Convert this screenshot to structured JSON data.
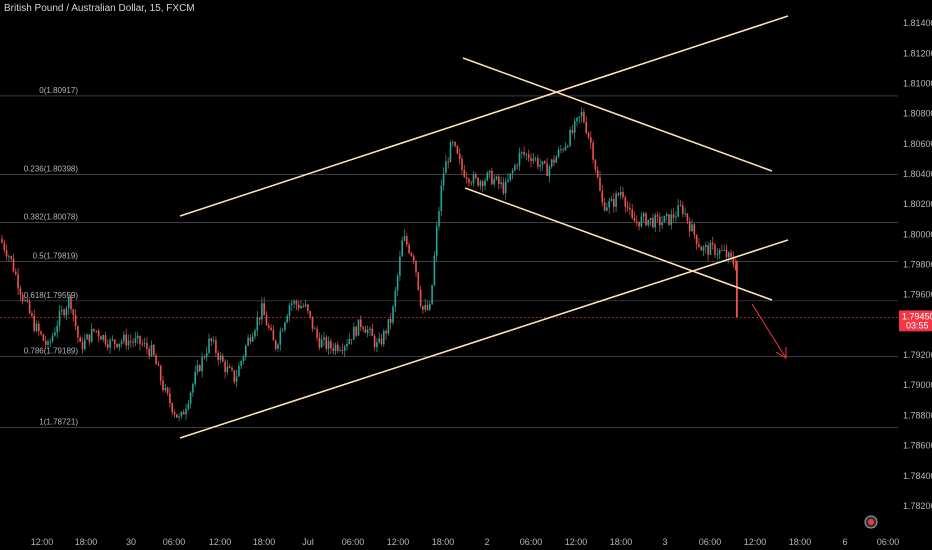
{
  "chart_data": {
    "type": "candlestick",
    "title": "British Pound / Australian Dollar, 15, FXCM",
    "price_axis": {
      "ticks": [
        "1.81400",
        "1.81200",
        "1.81000",
        "1.80800",
        "1.80600",
        "1.80400",
        "1.80200",
        "1.80000",
        "1.79800",
        "1.79600",
        "1.79400",
        "1.79200",
        "1.79000",
        "1.78800",
        "1.78600",
        "1.78400",
        "1.78200"
      ],
      "range": [
        1.815,
        1.7812
      ]
    },
    "time_axis": {
      "ticks": [
        "12:00",
        "18:00",
        "30",
        "06:00",
        "12:00",
        "18:00",
        "Jul",
        "06:00",
        "12:00",
        "18:00",
        "2",
        "06:00",
        "12:00",
        "18:00",
        "3",
        "06:00",
        "12:00",
        "18:00",
        "6",
        "06:00"
      ]
    },
    "fib_levels": [
      {
        "label": "0(1.80917)",
        "price": 1.80917
      },
      {
        "label": "0.236(1.80398)",
        "price": 1.80398
      },
      {
        "label": "0.382(1.80078)",
        "price": 1.80078
      },
      {
        "label": "0.5(1.79819)",
        "price": 1.79819
      },
      {
        "label": "0.618(1.79559)",
        "price": 1.79559
      },
      {
        "label": "0.786(1.79189)",
        "price": 1.79189
      },
      {
        "label": "1(1.78721)",
        "price": 1.78721
      }
    ],
    "current_price": {
      "label": "1.79450",
      "countdown": "03:55",
      "color": "#f23645"
    },
    "colors": {
      "up": "#26a69a",
      "down": "#ef5350",
      "trendline": "#ffe0b2",
      "fib": "#787b86",
      "background": "#000000"
    }
  }
}
